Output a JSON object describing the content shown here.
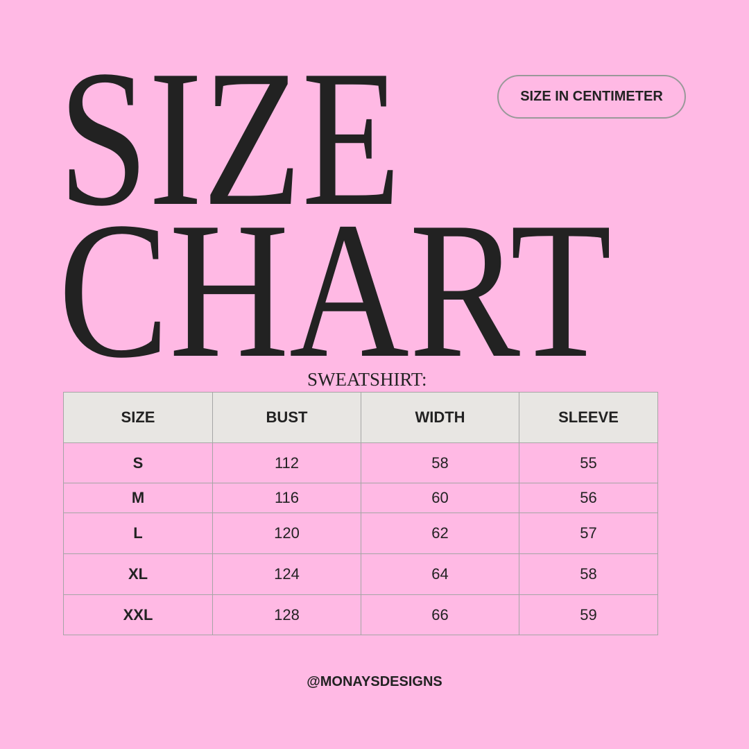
{
  "title": {
    "line1": "SIZE",
    "line2": "CHART"
  },
  "unit_badge": "SIZE IN CENTIMETER",
  "garment": "SWEATSHIRT:",
  "table": {
    "headers": [
      "SIZE",
      "BUST",
      "WIDTH",
      "SLEEVE"
    ],
    "rows": [
      [
        "S",
        "112",
        "58",
        "55"
      ],
      [
        "M",
        "116",
        "60",
        "56"
      ],
      [
        "L",
        "120",
        "62",
        "57"
      ],
      [
        "XL",
        "124",
        "64",
        "58"
      ],
      [
        "XXL",
        "128",
        "66",
        "59"
      ]
    ]
  },
  "footer": "@MONAYSDESIGNS",
  "colors": {
    "background": "#ffb9e4",
    "header_fill": "#e8e6e3",
    "text": "#222222",
    "border": "#a5a5a5"
  }
}
